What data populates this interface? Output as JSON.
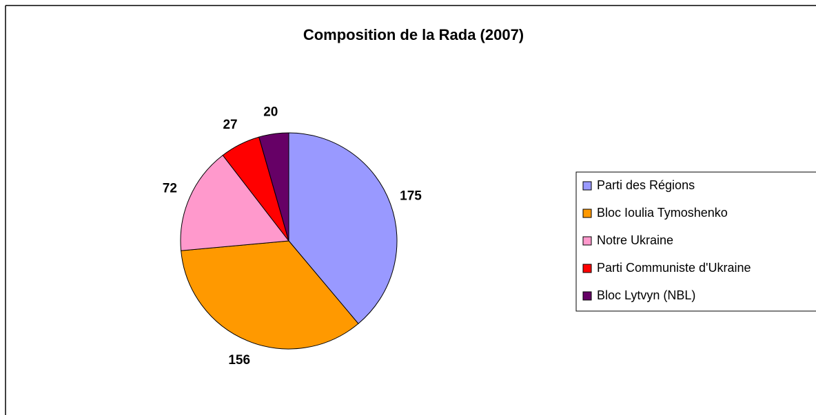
{
  "chart_data": {
    "type": "pie",
    "title": "Composition de la Rada (2007)",
    "categories": [
      "Parti des Régions",
      "Bloc Ioulia Tymoshenko",
      "Notre Ukraine",
      "Parti Communiste d'Ukraine",
      "Bloc Lytvyn (NBL)"
    ],
    "values": [
      175,
      156,
      72,
      27,
      20
    ],
    "colors": [
      "#9999ff",
      "#ff9900",
      "#ff99cc",
      "#ff0000",
      "#660066"
    ],
    "legend": "right"
  }
}
